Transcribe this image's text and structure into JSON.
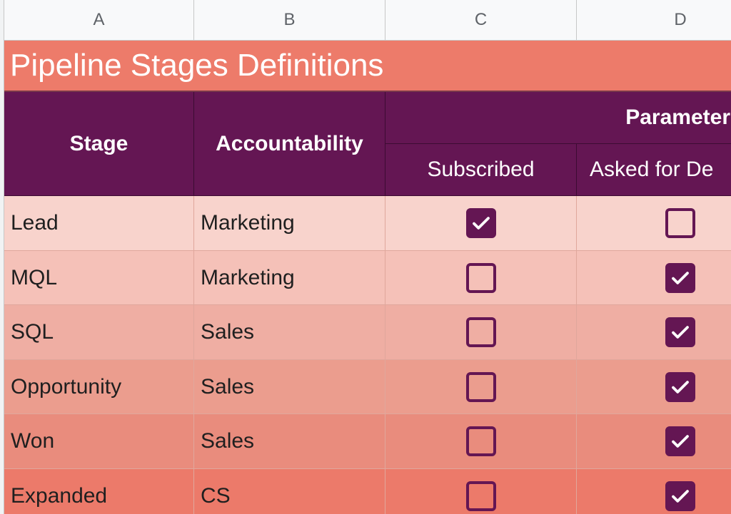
{
  "columns": [
    "A",
    "B",
    "C",
    "D"
  ],
  "title": "Pipeline Stages Definitions",
  "headers": {
    "stage": "Stage",
    "accountability": "Accountability",
    "parameters": "Parameter",
    "subscribed": "Subscribed",
    "asked": "Asked for De"
  },
  "colors": {
    "header_bg": "#641653",
    "title_bg": "#ed7b6a",
    "row_bgs": [
      "#f8d3cc",
      "#f5c1b8",
      "#efaea3",
      "#eb9d8e",
      "#e98c7d",
      "#ec7a6a"
    ]
  },
  "rows": [
    {
      "stage": "Lead",
      "accountability": "Marketing",
      "subscribed": true,
      "asked": false
    },
    {
      "stage": "MQL",
      "accountability": "Marketing",
      "subscribed": false,
      "asked": true
    },
    {
      "stage": "SQL",
      "accountability": "Sales",
      "subscribed": false,
      "asked": true
    },
    {
      "stage": "Opportunity",
      "accountability": "Sales",
      "subscribed": false,
      "asked": true
    },
    {
      "stage": "Won",
      "accountability": "Sales",
      "subscribed": false,
      "asked": true
    },
    {
      "stage": "Expanded",
      "accountability": "CS",
      "subscribed": false,
      "asked": true
    }
  ],
  "icons": {
    "checked": "check-icon"
  }
}
